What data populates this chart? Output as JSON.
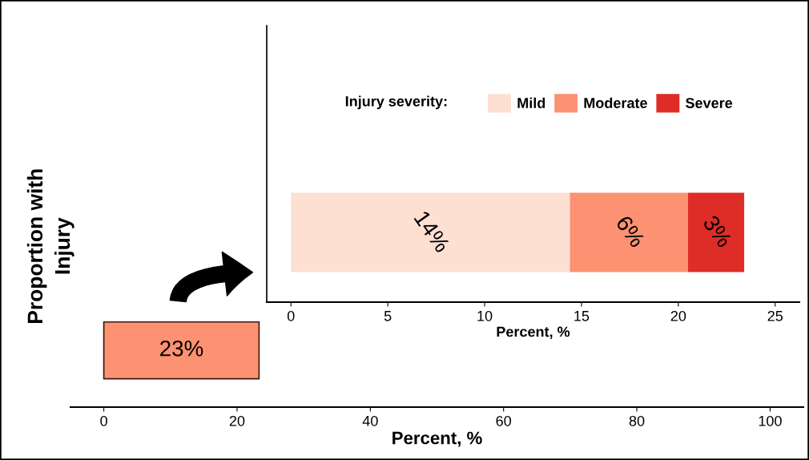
{
  "chart_data": [
    {
      "type": "bar",
      "orientation": "horizontal",
      "ylabel": "Proportion with\nInjury",
      "xlabel": "Percent, %",
      "categories": [
        null
      ],
      "series": [
        {
          "color": "#fc9272",
          "values": [
            23.3
          ],
          "value_labels": [
            "23%"
          ]
        }
      ],
      "xlim": [
        -5,
        105
      ],
      "xticks": [
        0,
        20,
        40,
        60,
        80,
        100
      ],
      "tick_labels": "x",
      "grid": false,
      "legend": false
    },
    {
      "type": "bar",
      "orientation": "horizontal",
      "stacked": true,
      "xlabel": "Percent, %",
      "legend_title": "Injury severity:",
      "categories": [
        null
      ],
      "series": [
        {
          "name": "Mild",
          "color": "#fde0d2",
          "values": [
            14.4
          ],
          "value_labels": [
            "14%"
          ]
        },
        {
          "name": "Moderate",
          "color": "#fc9272",
          "values": [
            6.1
          ],
          "value_labels": [
            "6%"
          ]
        },
        {
          "name": "Severe",
          "color": "#de2d26",
          "values": [
            2.9
          ],
          "value_labels": [
            "3%"
          ]
        }
      ],
      "xlim": [
        -1.25,
        26.25
      ],
      "xticks": [
        0,
        5,
        10,
        15,
        20,
        25
      ],
      "tick_labels": "x",
      "grid": false,
      "legend": "top"
    }
  ]
}
